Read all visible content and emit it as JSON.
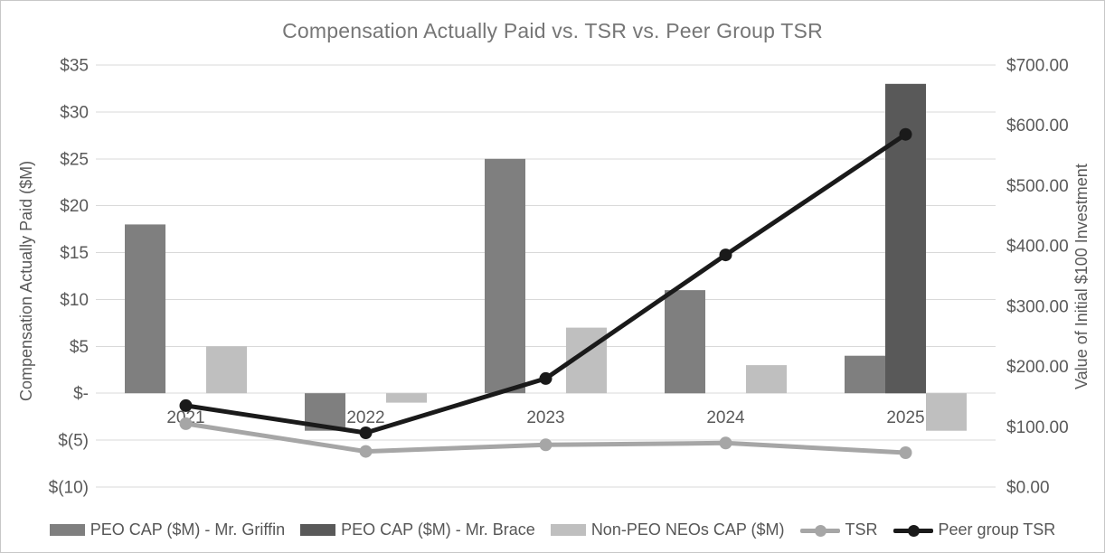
{
  "chart_title": "Compensation Actually Paid vs. TSR vs. Peer Group TSR",
  "left_axis": {
    "title": "Compensation Actually Paid ($M)",
    "tick_labels": [
      "$35",
      "$30",
      "$25",
      "$20",
      "$15",
      "$10",
      "$5",
      "$-",
      "$(5)",
      "$(10)"
    ],
    "tick_values": [
      35,
      30,
      25,
      20,
      15,
      10,
      5,
      0,
      -5,
      -10
    ]
  },
  "right_axis": {
    "title": "Value of Initial $100 Investment",
    "tick_labels": [
      "$700.00",
      "$600.00",
      "$500.00",
      "$400.00",
      "$300.00",
      "$200.00",
      "$100.00",
      "$0.00"
    ],
    "tick_values": [
      700,
      600,
      500,
      400,
      300,
      200,
      100,
      0
    ]
  },
  "chart_data": {
    "type": "combo-bar-line",
    "title": "Compensation Actually Paid vs. TSR vs. Peer Group TSR",
    "categories": [
      "2021",
      "2022",
      "2023",
      "2024",
      "2025"
    ],
    "left_ylabel": "Compensation Actually Paid ($M)",
    "right_ylabel": "Value of Initial $100 Investment",
    "left_ylim": [
      -10,
      35
    ],
    "right_ylim": [
      0,
      700
    ],
    "grid": true,
    "legend_position": "bottom",
    "bar_series": [
      {
        "name": "PEO CAP ($M) - Mr. Griffin",
        "axis": "left",
        "color": "#7f7f7f",
        "values": [
          18,
          -4,
          25,
          11,
          4
        ]
      },
      {
        "name": "PEO CAP ($M) - Mr. Brace",
        "axis": "left",
        "color": "#595959",
        "values": [
          null,
          null,
          null,
          null,
          33
        ]
      },
      {
        "name": "Non-PEO NEOs CAP ($M)",
        "axis": "left",
        "color": "#bfbfbf",
        "values": [
          5,
          -1,
          7,
          3,
          -4
        ]
      }
    ],
    "line_series": [
      {
        "name": "TSR",
        "axis": "right",
        "color": "#a6a6a6",
        "values": [
          105,
          59,
          70,
          73,
          57
        ]
      },
      {
        "name": "Peer group TSR",
        "axis": "right",
        "color": "#1a1a1a",
        "values": [
          135,
          90,
          180,
          385,
          585
        ]
      }
    ]
  },
  "colors": {
    "gridline": "#d9d9d9",
    "axis_text": "#595959",
    "title_text": "#767676",
    "canvas_border": "#c7c7c7"
  }
}
